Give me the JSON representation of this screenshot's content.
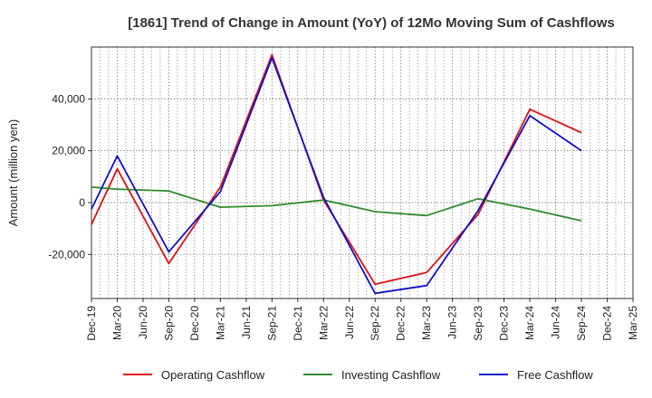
{
  "chart_data": {
    "type": "line",
    "title": "[1861]  Trend of Change in Amount (YoY) of 12Mo Moving Sum of Cashflows",
    "xlabel": "",
    "ylabel": "Amount (million yen)",
    "ylim": [
      -37000,
      60000
    ],
    "yticks": [
      -20000,
      0,
      20000,
      40000
    ],
    "ytick_labels": [
      "-20,000",
      "0",
      "20,000",
      "40,000"
    ],
    "categories": [
      "Dec-19",
      "Mar-20",
      "Jun-20",
      "Sep-20",
      "Dec-20",
      "Mar-21",
      "Jun-21",
      "Sep-21",
      "Dec-21",
      "Mar-22",
      "Jun-22",
      "Sep-22",
      "Dec-22",
      "Mar-23",
      "Jun-23",
      "Sep-23",
      "Dec-23",
      "Mar-24",
      "Jun-24",
      "Sep-24",
      "Dec-24",
      "Mar-25"
    ],
    "grid": true,
    "legend_position": "bottom",
    "series": [
      {
        "name": "Operating Cashflow",
        "color": "#dd1111",
        "points": [
          [
            0,
            -8500
          ],
          [
            1,
            13000
          ],
          [
            3,
            -23500
          ],
          [
            5,
            6000
          ],
          [
            7,
            57000
          ],
          [
            9,
            1000
          ],
          [
            11,
            -31500
          ],
          [
            13,
            -27000
          ],
          [
            15,
            -4500
          ],
          [
            17,
            36000
          ],
          [
            19,
            27000
          ]
        ]
      },
      {
        "name": "Investing Cashflow",
        "color": "#2e8b2e",
        "points": [
          [
            0,
            6000
          ],
          [
            1,
            5200
          ],
          [
            3,
            4500
          ],
          [
            5,
            -1800
          ],
          [
            7,
            -1200
          ],
          [
            9,
            1000
          ],
          [
            11,
            -3500
          ],
          [
            13,
            -5000
          ],
          [
            15,
            1500
          ],
          [
            17,
            -2500
          ],
          [
            19,
            -7000
          ]
        ]
      },
      {
        "name": "Free Cashflow",
        "color": "#1111cc",
        "points": [
          [
            0,
            -2500
          ],
          [
            1,
            18000
          ],
          [
            3,
            -19000
          ],
          [
            5,
            4200
          ],
          [
            7,
            55800
          ],
          [
            9,
            2000
          ],
          [
            11,
            -35000
          ],
          [
            13,
            -32000
          ],
          [
            15,
            -3000
          ],
          [
            17,
            33500
          ],
          [
            19,
            20000
          ]
        ]
      }
    ]
  }
}
